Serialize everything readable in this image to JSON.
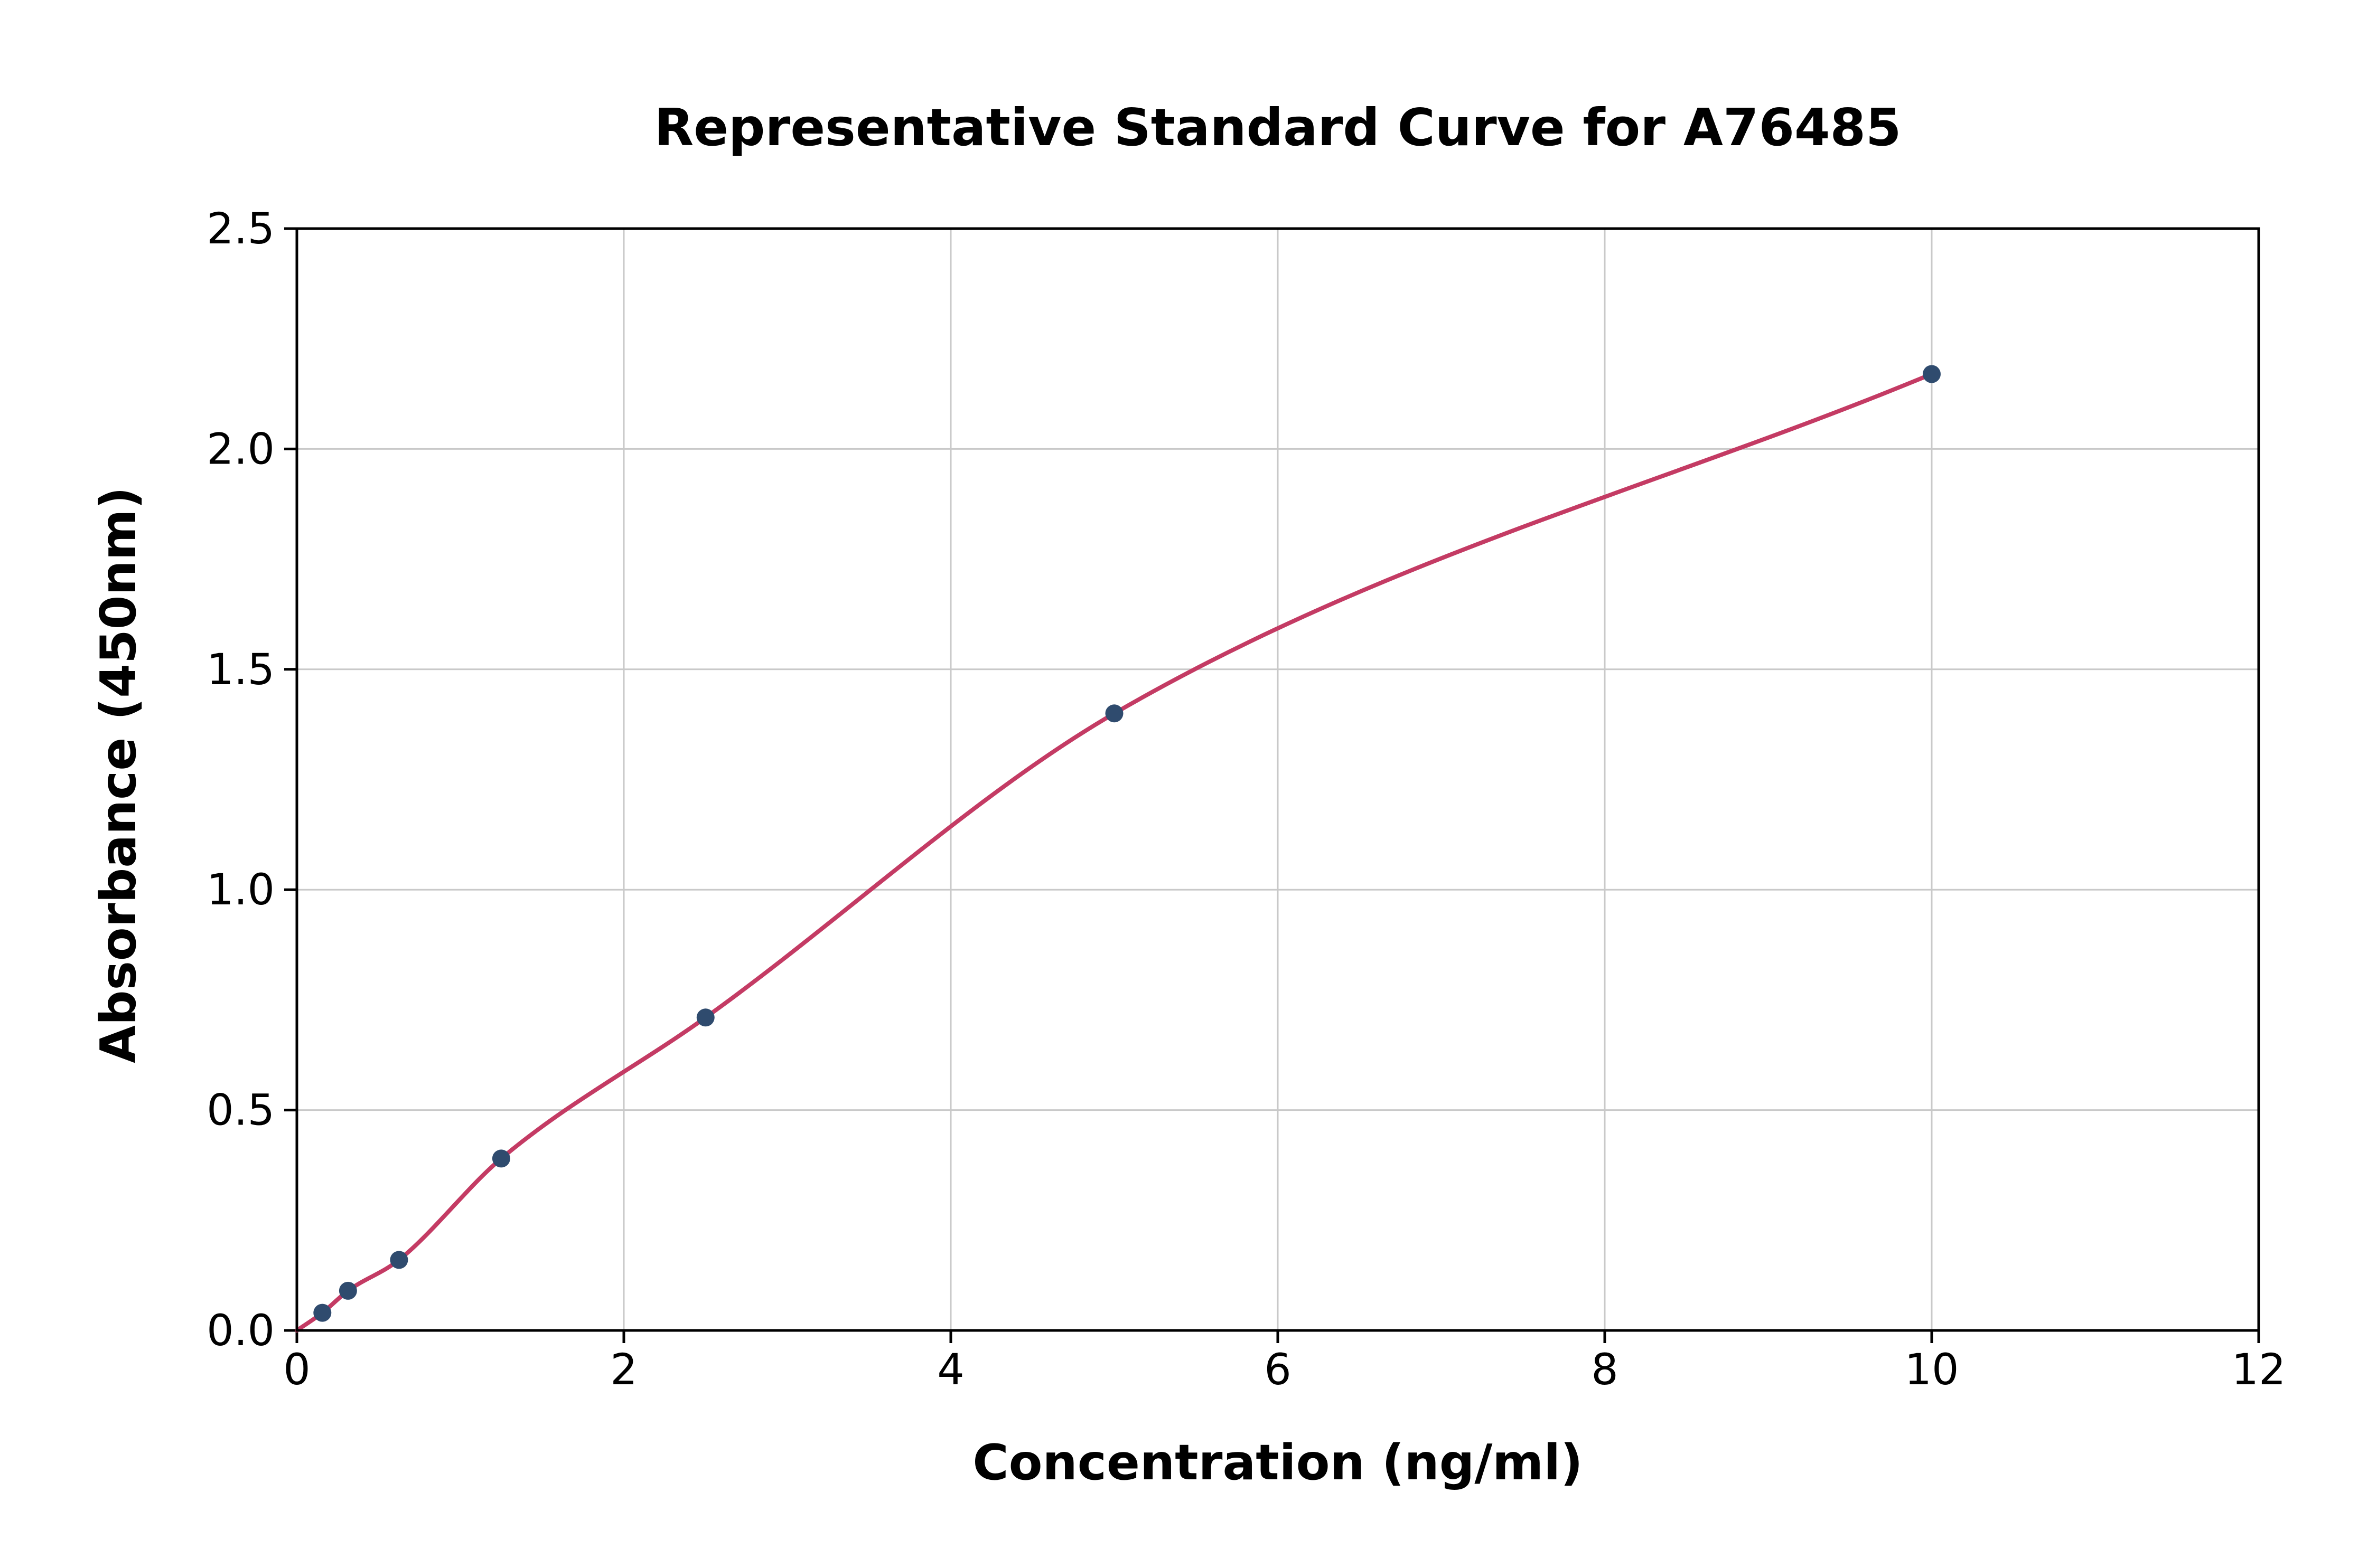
{
  "chart_data": {
    "type": "scatter",
    "title": "Representative Standard Curve for A76485",
    "xlabel": "Concentration (ng/ml)",
    "ylabel": "Absorbance (450nm)",
    "xlim": [
      0,
      12
    ],
    "ylim": [
      0,
      2.5
    ],
    "x_ticks": [
      0,
      2,
      4,
      6,
      8,
      10,
      12
    ],
    "x_tick_labels": [
      "0",
      "2",
      "4",
      "6",
      "8",
      "10",
      "12"
    ],
    "y_ticks": [
      0.0,
      0.5,
      1.0,
      1.5,
      2.0,
      2.5
    ],
    "y_tick_labels": [
      "0.0",
      "0.5",
      "1.0",
      "1.5",
      "2.0",
      "2.5"
    ],
    "grid": true,
    "legend": "none",
    "points": {
      "x": [
        0.156,
        0.313,
        0.625,
        1.25,
        2.5,
        5.0,
        10.0
      ],
      "y": [
        0.04,
        0.09,
        0.16,
        0.39,
        0.71,
        1.4,
        2.17
      ]
    },
    "fit_curve_start": {
      "x": 0.0,
      "y": 0.0
    },
    "colors": {
      "point_color": "#2f4b6e",
      "curve_color": "#c43b64",
      "grid_color": "#c9c9c9",
      "axis_color": "#000000",
      "text_color": "#000000"
    }
  }
}
